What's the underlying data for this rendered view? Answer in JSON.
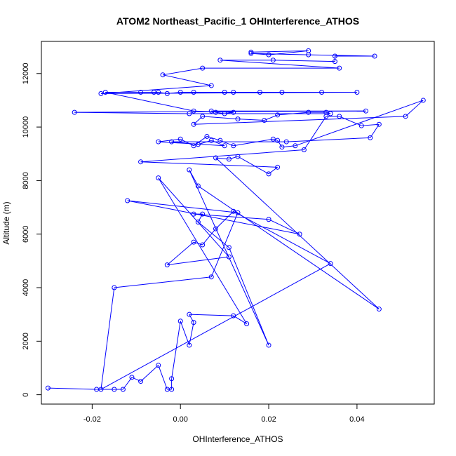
{
  "chart_data": {
    "type": "line",
    "title": "ATOM2 Northeast_Pacific_1 OHInterference_ATHOS",
    "xlabel": "OHInterference_ATHOS",
    "ylabel": "Altitude (m)",
    "xlim": [
      -0.0315,
      0.0575
    ],
    "ylim": [
      -350,
      13200
    ],
    "xticks": [
      -0.02,
      0.0,
      0.02,
      0.04
    ],
    "xtick_labels": [
      "-0.02",
      "0.00",
      "0.02",
      "0.04"
    ],
    "yticks": [
      0,
      2000,
      4000,
      6000,
      8000,
      10000,
      12000
    ],
    "ytick_labels": [
      "0",
      "2000",
      "4000",
      "6000",
      "8000",
      "10000",
      "12000"
    ],
    "grid": false,
    "legend": "none",
    "series_color": "#0000ff",
    "series": [
      {
        "style": "lines+open-circles",
        "points": [
          [
            -0.03,
            250
          ],
          [
            -0.019,
            200
          ],
          [
            -0.015,
            200
          ],
          [
            -0.013,
            200
          ],
          [
            -0.011,
            650
          ],
          [
            -0.009,
            500
          ],
          [
            -0.005,
            1100
          ],
          [
            -0.003,
            200
          ],
          [
            -0.002,
            200
          ],
          [
            -0.002,
            600
          ],
          [
            0.0,
            2750
          ],
          [
            0.002,
            1850
          ],
          [
            0.003,
            2700
          ],
          [
            0.002,
            3000
          ],
          [
            0.012,
            2950
          ],
          [
            0.015,
            2650
          ],
          [
            -0.005,
            8100
          ],
          [
            0.011,
            5150
          ],
          [
            -0.003,
            4850
          ],
          [
            0.003,
            5700
          ],
          [
            0.005,
            5600
          ],
          [
            0.008,
            6200
          ],
          [
            0.012,
            6850
          ],
          [
            0.034,
            4900
          ],
          [
            -0.018,
            200
          ],
          [
            -0.015,
            4000
          ],
          [
            0.007,
            4400
          ],
          [
            0.013,
            6800
          ],
          [
            -0.012,
            7250
          ],
          [
            0.027,
            6000
          ],
          [
            0.02,
            6550
          ],
          [
            0.003,
            6750
          ],
          [
            0.005,
            6750
          ],
          [
            0.004,
            6450
          ],
          [
            0.011,
            5500
          ],
          [
            0.02,
            1850
          ],
          [
            0.002,
            8400
          ],
          [
            0.004,
            7800
          ],
          [
            0.045,
            3200
          ],
          [
            0.008,
            8850
          ],
          [
            0.011,
            8800
          ],
          [
            0.013,
            8900
          ],
          [
            0.02,
            8250
          ],
          [
            0.022,
            8500
          ],
          [
            -0.009,
            8700
          ],
          [
            0.028,
            9150
          ],
          [
            0.033,
            10400
          ],
          [
            0.036,
            10400
          ],
          [
            0.041,
            10050
          ],
          [
            0.045,
            10100
          ],
          [
            0.043,
            9600
          ],
          [
            0.024,
            9450
          ],
          [
            -0.002,
            9450
          ],
          [
            0.004,
            9350
          ],
          [
            0.007,
            9500
          ],
          [
            0.01,
            9300
          ],
          [
            -0.005,
            9450
          ],
          [
            0.0,
            9550
          ],
          [
            0.003,
            9300
          ],
          [
            0.006,
            9650
          ],
          [
            0.009,
            9500
          ],
          [
            0.012,
            9300
          ],
          [
            0.021,
            9550
          ],
          [
            0.022,
            9500
          ],
          [
            0.023,
            9250
          ],
          [
            0.026,
            9300
          ],
          [
            0.055,
            11000
          ],
          [
            0.051,
            10400
          ],
          [
            0.003,
            10100
          ],
          [
            0.005,
            10400
          ],
          [
            0.013,
            10300
          ],
          [
            0.019,
            10250
          ],
          [
            0.022,
            10450
          ],
          [
            0.029,
            10550
          ],
          [
            0.033,
            10550
          ],
          [
            0.034,
            10500
          ],
          [
            0.002,
            10500
          ],
          [
            -0.024,
            10550
          ],
          [
            0.042,
            10600
          ],
          [
            0.007,
            10600
          ],
          [
            0.008,
            10550
          ],
          [
            0.01,
            10500
          ],
          [
            0.012,
            10550
          ],
          [
            0.003,
            10600
          ],
          [
            -0.017,
            11300
          ],
          [
            -0.009,
            11300
          ],
          [
            -0.006,
            11300
          ],
          [
            -0.005,
            11300
          ],
          [
            -0.003,
            11250
          ],
          [
            0.0,
            11300
          ],
          [
            0.003,
            11300
          ],
          [
            0.01,
            11300
          ],
          [
            0.012,
            11300
          ],
          [
            0.018,
            11300
          ],
          [
            0.023,
            11300
          ],
          [
            0.032,
            11300
          ],
          [
            0.04,
            11300
          ],
          [
            -0.018,
            11250
          ],
          [
            0.007,
            11550
          ],
          [
            -0.004,
            11950
          ],
          [
            0.005,
            12200
          ],
          [
            0.036,
            12200
          ],
          [
            0.009,
            12500
          ],
          [
            0.021,
            12500
          ],
          [
            0.035,
            12450
          ],
          [
            0.035,
            12650
          ],
          [
            0.044,
            12650
          ],
          [
            0.029,
            12700
          ],
          [
            0.016,
            12750
          ],
          [
            0.02,
            12700
          ],
          [
            0.029,
            12850
          ],
          [
            0.016,
            12800
          ]
        ]
      }
    ]
  }
}
